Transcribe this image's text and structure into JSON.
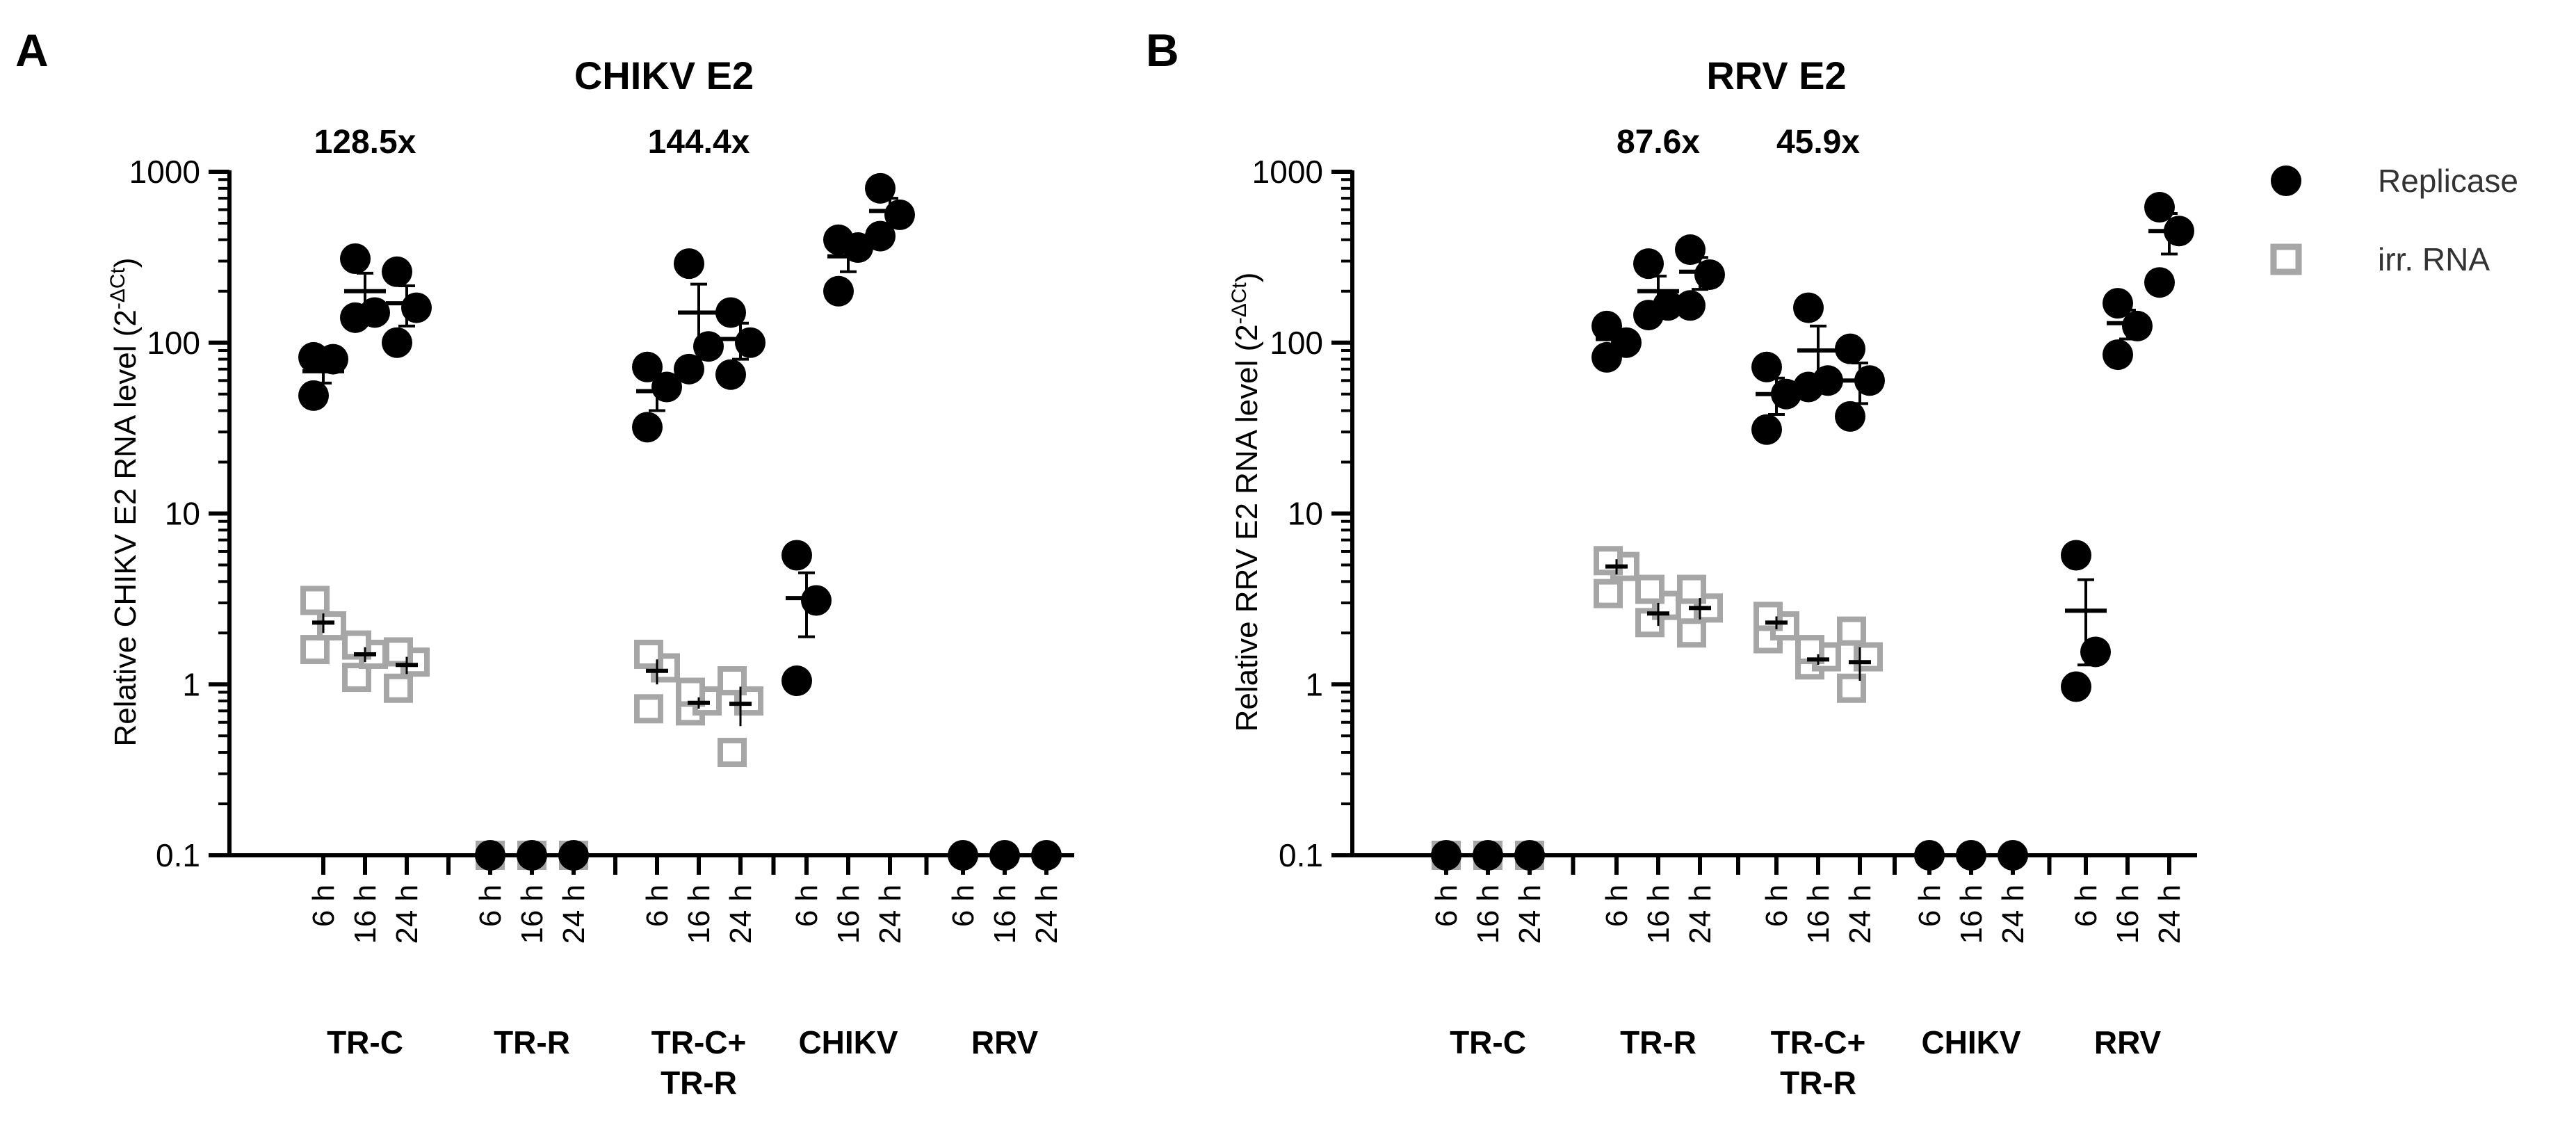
{
  "chart_data": [
    {
      "panel": "A",
      "type": "scatter",
      "title": "CHIKV E2",
      "ylabel": "Relative CHIKV E2 RNA level (2",
      "ylabel_sup": "-ΔCt",
      "ylabel_end": ")",
      "yscale": "log",
      "ylim": [
        0.1,
        1000
      ],
      "yticks": [
        "1000",
        "100",
        "10",
        "1",
        "0.1"
      ],
      "timepoints": [
        "6 h",
        "16 h",
        "24 h"
      ],
      "groups": [
        {
          "label": [
            "TR-C"
          ],
          "fold": "128.5x",
          "replicase": [
            [
              49,
              80,
              82
            ],
            [
              140,
              150,
              310
            ],
            [
              100,
              160,
              260
            ]
          ],
          "replicase_mean": [
            68,
            200,
            170
          ],
          "replicase_sem": [
            10,
            55,
            45
          ],
          "irr": [
            [
              1.6,
              2.2,
              3.1
            ],
            [
              1.1,
              1.5,
              1.7
            ],
            [
              0.95,
              1.35,
              1.55
            ]
          ],
          "irr_mean": [
            2.3,
            1.5,
            1.3
          ],
          "irr_sem": [
            0.3,
            0.15,
            0.15
          ]
        },
        {
          "label": [
            "TR-R"
          ],
          "fold": "",
          "replicase": [
            [
              0.1
            ],
            [
              0.1
            ],
            [
              0.1
            ]
          ],
          "replicase_mean": [
            null,
            null,
            null
          ],
          "replicase_sem": [
            null,
            null,
            null
          ],
          "irr": [
            [
              0.1
            ],
            [
              0.1
            ],
            [
              0.1
            ]
          ],
          "irr_mean": [
            null,
            null,
            null
          ],
          "irr_sem": [
            null,
            null,
            null
          ]
        },
        {
          "label": [
            "TR-C+",
            "TR-R"
          ],
          "fold": "144.4x",
          "replicase": [
            [
              32,
              55,
              72
            ],
            [
              70,
              95,
              290
            ],
            [
              65,
              100,
              150
            ]
          ],
          "replicase_mean": [
            52,
            150,
            105
          ],
          "replicase_sem": [
            12,
            70,
            25
          ],
          "irr": [
            [
              0.72,
              1.25,
              1.5
            ],
            [
              0.7,
              0.8,
              0.9
            ],
            [
              0.4,
              0.8,
              1.05
            ]
          ],
          "irr_mean": [
            1.2,
            0.78,
            0.77
          ],
          "irr_sem": [
            0.2,
            0.06,
            0.2
          ]
        },
        {
          "label": [
            "CHIKV"
          ],
          "fold": "",
          "replicase": [
            [
              1.05,
              3.1,
              5.7
            ],
            [
              200,
              360,
              400
            ],
            [
              420,
              560,
              800
            ]
          ],
          "replicase_mean": [
            3.2,
            320,
            590
          ],
          "replicase_sem": [
            1.3,
            60,
            110
          ],
          "irr": [
            [],
            [],
            []
          ],
          "irr_mean": [
            null,
            null,
            null
          ],
          "irr_sem": [
            null,
            null,
            null
          ]
        },
        {
          "label": [
            "RRV"
          ],
          "fold": "",
          "replicase": [
            [
              0.1
            ],
            [
              0.1
            ],
            [
              0.1
            ]
          ],
          "replicase_mean": [
            null,
            null,
            null
          ],
          "replicase_sem": [
            null,
            null,
            null
          ],
          "irr": [
            [],
            [],
            []
          ],
          "irr_mean": [
            null,
            null,
            null
          ],
          "irr_sem": [
            null,
            null,
            null
          ]
        }
      ]
    },
    {
      "panel": "B",
      "type": "scatter",
      "title": "RRV E2",
      "ylabel": "Relative RRV E2 RNA level (2",
      "ylabel_sup": "-ΔCt",
      "ylabel_end": ")",
      "yscale": "log",
      "ylim": [
        0.1,
        1000
      ],
      "yticks": [
        "1000",
        "100",
        "10",
        "1",
        "0.1"
      ],
      "timepoints": [
        "6 h",
        "16 h",
        "24 h"
      ],
      "groups": [
        {
          "label": [
            "TR-C"
          ],
          "fold": "",
          "replicase": [
            [
              0.1
            ],
            [
              0.1
            ],
            [
              0.1
            ]
          ],
          "replicase_mean": [
            null,
            null,
            null
          ],
          "replicase_sem": [
            null,
            null,
            null
          ],
          "irr": [
            [
              0.1
            ],
            [
              0.1
            ],
            [
              0.1
            ]
          ],
          "irr_mean": [
            null,
            null,
            null
          ],
          "irr_sem": [
            null,
            null,
            null
          ]
        },
        {
          "label": [
            "TR-R"
          ],
          "fold": "87.6x",
          "replicase": [
            [
              82,
              100,
              125
            ],
            [
              145,
              165,
              290
            ],
            [
              165,
              250,
              350
            ]
          ],
          "replicase_mean": [
            105,
            200,
            260
          ],
          "replicase_sem": [
            13,
            45,
            55
          ],
          "irr": [
            [
              3.4,
              4.9,
              5.3
            ],
            [
              2.3,
              2.9,
              3.6
            ],
            [
              2.0,
              2.8,
              3.6
            ]
          ],
          "irr_mean": [
            4.9,
            2.6,
            2.8
          ],
          "irr_sem": [
            0.5,
            0.4,
            0.4
          ]
        },
        {
          "label": [
            "TR-C+",
            "TR-R"
          ],
          "fold": "45.9x",
          "replicase": [
            [
              31,
              50,
              72
            ],
            [
              55,
              60,
              160
            ],
            [
              37,
              60,
              92
            ]
          ],
          "replicase_mean": [
            50,
            90,
            60
          ],
          "replicase_sem": [
            12,
            35,
            16
          ],
          "irr": [
            [
              1.85,
              2.2,
              2.5
            ],
            [
              1.3,
              1.45,
              1.6
            ],
            [
              0.95,
              1.45,
              2.05
            ]
          ],
          "irr_mean": [
            2.3,
            1.4,
            1.35
          ],
          "irr_sem": [
            0.2,
            0.1,
            0.3
          ]
        },
        {
          "label": [
            "CHIKV"
          ],
          "fold": "",
          "replicase": [
            [
              0.1
            ],
            [
              0.1
            ],
            [
              0.1
            ]
          ],
          "replicase_mean": [
            null,
            null,
            null
          ],
          "replicase_sem": [
            null,
            null,
            null
          ],
          "irr": [
            [],
            [],
            []
          ],
          "irr_mean": [
            null,
            null,
            null
          ],
          "irr_sem": [
            null,
            null,
            null
          ]
        },
        {
          "label": [
            "RRV"
          ],
          "fold": "",
          "replicase": [
            [
              0.97,
              1.55,
              5.7
            ],
            [
              85,
              125,
              170
            ],
            [
              225,
              450,
              620
            ]
          ],
          "replicase_mean": [
            2.7,
            130,
            450
          ],
          "replicase_sem": [
            1.4,
            25,
            120
          ],
          "irr": [
            [],
            [],
            []
          ],
          "irr_mean": [
            null,
            null,
            null
          ],
          "irr_sem": [
            null,
            null,
            null
          ]
        }
      ]
    }
  ],
  "legend": {
    "replicase_label": "Replicase",
    "irr_label": "irr. RNA",
    "replicase_color": "#000000",
    "irr_color": "#a6a6a6",
    "placement": "top-right"
  }
}
